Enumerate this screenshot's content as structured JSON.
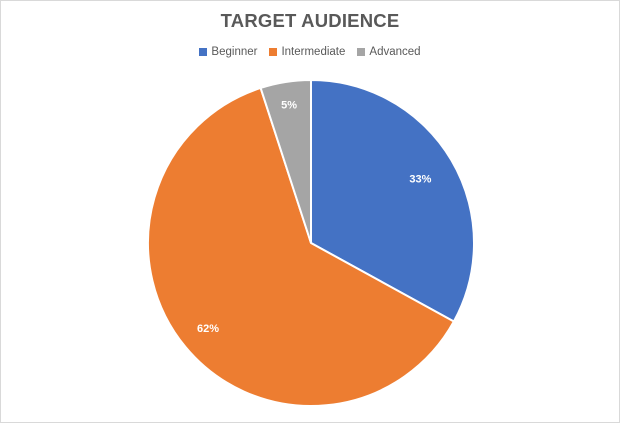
{
  "chart_data": {
    "type": "pie",
    "title": "TARGET AUDIENCE",
    "legend_position": "top",
    "categories": [
      "Beginner",
      "Intermediate",
      "Advanced"
    ],
    "values": [
      33,
      62,
      5
    ],
    "data_labels": [
      "33%",
      "62%",
      "5%"
    ],
    "colors": [
      "#4472c4",
      "#ed7d31",
      "#a5a5a5"
    ]
  }
}
